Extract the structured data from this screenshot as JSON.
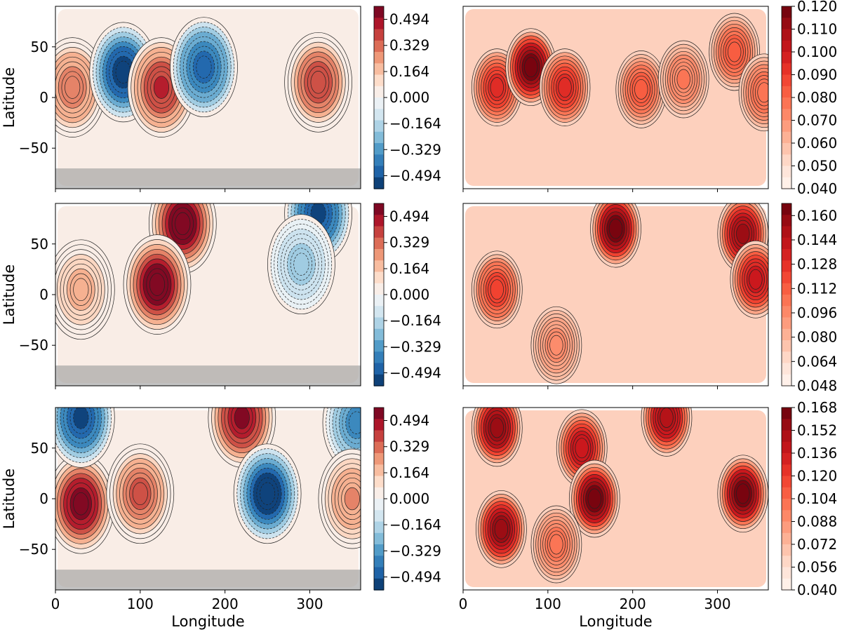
{
  "figure": {
    "rows": 3,
    "cols": 2,
    "xlabel": "Longitude",
    "ylabel": "Latitude",
    "x_ticks": [
      "0",
      "100",
      "200",
      "300"
    ],
    "y_ticks": [
      "50",
      "0",
      "−50"
    ]
  },
  "chart_data": [
    {
      "type": "heatmap",
      "panel": "row1-left",
      "description_kind": "filled contour, diverging",
      "colormap": "RdBu_r",
      "xlim": [
        0,
        360
      ],
      "ylim": [
        -90,
        90
      ],
      "xlabel": "",
      "ylabel": "Latitude",
      "shaded_band_lat": [
        -90,
        -70
      ],
      "colorbar_ticks": [
        "0.494",
        "0.329",
        "0.164",
        "0.000",
        "−0.164",
        "−0.329",
        "−0.494"
      ],
      "colorbar_range": [
        -0.576,
        0.576
      ],
      "features": [
        {
          "lon": 20,
          "lat": 10,
          "value": 0.3
        },
        {
          "lon": 80,
          "lat": 25,
          "value": -0.55
        },
        {
          "lon": 125,
          "lat": 10,
          "value": 0.42
        },
        {
          "lon": 175,
          "lat": 30,
          "value": -0.45
        },
        {
          "lon": 310,
          "lat": 15,
          "value": 0.38
        }
      ]
    },
    {
      "type": "heatmap",
      "panel": "row1-right",
      "description_kind": "filled contour, sequential",
      "colormap": "Reds",
      "xlim": [
        0,
        360
      ],
      "ylim": [
        -90,
        90
      ],
      "colorbar_ticks": [
        "0.120",
        "0.110",
        "0.100",
        "0.090",
        "0.080",
        "0.070",
        "0.060",
        "0.050",
        "0.040"
      ],
      "colorbar_range": [
        0.04,
        0.12
      ],
      "features": [
        {
          "lon": 40,
          "lat": 10,
          "value": 0.095
        },
        {
          "lon": 80,
          "lat": 30,
          "value": 0.12
        },
        {
          "lon": 120,
          "lat": 10,
          "value": 0.095
        },
        {
          "lon": 210,
          "lat": 8,
          "value": 0.085
        },
        {
          "lon": 260,
          "lat": 18,
          "value": 0.075
        },
        {
          "lon": 320,
          "lat": 45,
          "value": 0.085
        },
        {
          "lon": 355,
          "lat": 5,
          "value": 0.08
        }
      ]
    },
    {
      "type": "heatmap",
      "panel": "row2-left",
      "description_kind": "filled contour, diverging",
      "colormap": "RdBu_r",
      "xlim": [
        0,
        360
      ],
      "ylim": [
        -90,
        90
      ],
      "xlabel": "",
      "ylabel": "Latitude",
      "shaded_band_lat": [
        -90,
        -70
      ],
      "colorbar_ticks": [
        "0.494",
        "0.329",
        "0.164",
        "0.000",
        "−0.164",
        "−0.329",
        "−0.494"
      ],
      "colorbar_range": [
        -0.576,
        0.576
      ],
      "features": [
        {
          "lon": 150,
          "lat": 70,
          "value": 0.56
        },
        {
          "lon": 120,
          "lat": 10,
          "value": 0.56
        },
        {
          "lon": 30,
          "lat": 5,
          "value": 0.2
        },
        {
          "lon": 310,
          "lat": 80,
          "value": -0.5
        },
        {
          "lon": 290,
          "lat": 30,
          "value": -0.2
        }
      ]
    },
    {
      "type": "heatmap",
      "panel": "row2-right",
      "description_kind": "filled contour, sequential",
      "colormap": "Reds",
      "xlim": [
        0,
        360
      ],
      "ylim": [
        -90,
        90
      ],
      "colorbar_ticks": [
        "0.160",
        "0.144",
        "0.128",
        "0.112",
        "0.096",
        "0.080",
        "0.064",
        "0.048"
      ],
      "colorbar_range": [
        0.048,
        0.168
      ],
      "features": [
        {
          "lon": 180,
          "lat": 65,
          "value": 0.165
        },
        {
          "lon": 330,
          "lat": 60,
          "value": 0.155
        },
        {
          "lon": 345,
          "lat": 15,
          "value": 0.14
        },
        {
          "lon": 40,
          "lat": 5,
          "value": 0.125
        },
        {
          "lon": 110,
          "lat": -50,
          "value": 0.095
        }
      ]
    },
    {
      "type": "heatmap",
      "panel": "row3-left",
      "description_kind": "filled contour, diverging",
      "colormap": "RdBu_r",
      "xlim": [
        0,
        360
      ],
      "ylim": [
        -90,
        90
      ],
      "xlabel": "Longitude",
      "ylabel": "Latitude",
      "shaded_band_lat": [
        -90,
        -70
      ],
      "colorbar_ticks": [
        "0.494",
        "0.329",
        "0.164",
        "0.000",
        "−0.164",
        "−0.329",
        "−0.494"
      ],
      "colorbar_range": [
        -0.576,
        0.576
      ],
      "features": [
        {
          "lon": 30,
          "lat": -5,
          "value": 0.55
        },
        {
          "lon": 100,
          "lat": 5,
          "value": 0.35
        },
        {
          "lon": 220,
          "lat": 80,
          "value": 0.5
        },
        {
          "lon": 250,
          "lat": 5,
          "value": -0.57
        },
        {
          "lon": 30,
          "lat": 80,
          "value": -0.5
        },
        {
          "lon": 355,
          "lat": 75,
          "value": -0.35
        },
        {
          "lon": 350,
          "lat": 0,
          "value": 0.25
        }
      ]
    },
    {
      "type": "heatmap",
      "panel": "row3-right",
      "description_kind": "filled contour, sequential",
      "colormap": "Reds",
      "xlim": [
        0,
        360
      ],
      "ylim": [
        -90,
        90
      ],
      "xlabel": "Longitude",
      "ylabel": "",
      "colorbar_ticks": [
        "0.168",
        "0.152",
        "0.136",
        "0.120",
        "0.104",
        "0.088",
        "0.072",
        "0.056",
        "0.040"
      ],
      "colorbar_range": [
        0.04,
        0.168
      ],
      "features": [
        {
          "lon": 40,
          "lat": 70,
          "value": 0.16
        },
        {
          "lon": 140,
          "lat": 50,
          "value": 0.14
        },
        {
          "lon": 240,
          "lat": 80,
          "value": 0.15
        },
        {
          "lon": 155,
          "lat": 0,
          "value": 0.165
        },
        {
          "lon": 330,
          "lat": 5,
          "value": 0.165
        },
        {
          "lon": 45,
          "lat": -30,
          "value": 0.155
        },
        {
          "lon": 110,
          "lat": -45,
          "value": 0.1
        }
      ]
    }
  ]
}
